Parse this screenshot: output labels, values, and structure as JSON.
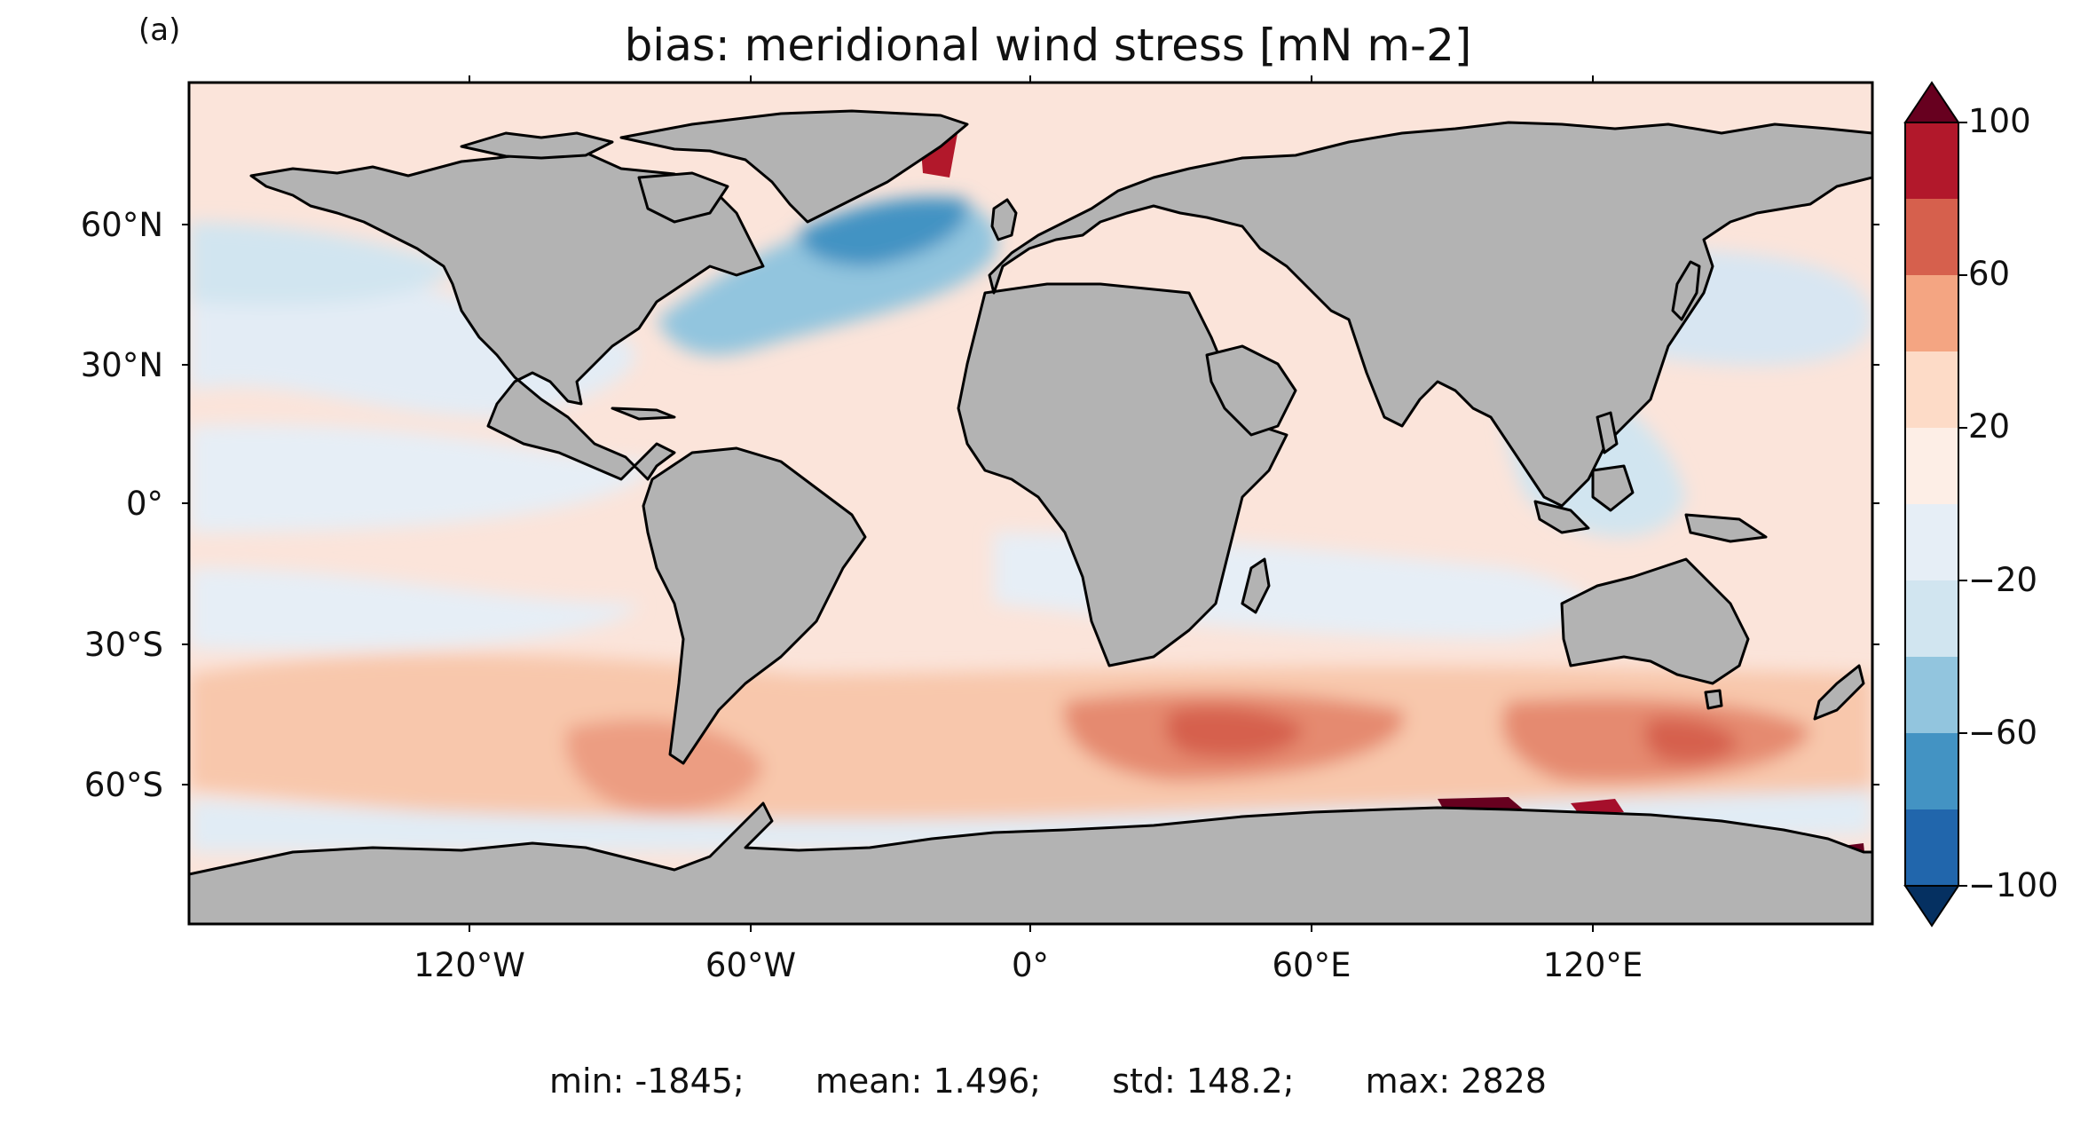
{
  "panel_label": "(a)",
  "title": "bias: meridional wind stress [mN m-2]",
  "lat_labels": [
    "60°N",
    "30°N",
    "0°",
    "30°S",
    "60°S"
  ],
  "lon_labels": [
    "120°W",
    "60°W",
    "0°",
    "60°E",
    "120°E"
  ],
  "colorbar": {
    "tick_labels": [
      "100",
      "60",
      "20",
      "−20",
      "−60",
      "−100"
    ],
    "colors": [
      "#67001f",
      "#b2182b",
      "#d6604d",
      "#f4a582",
      "#fddbc7",
      "#fdeee6",
      "#e6eef6",
      "#d1e5f0",
      "#92c5de",
      "#4393c3",
      "#2166ac",
      "#053061"
    ],
    "extend": "both"
  },
  "stats": {
    "min": "min: -1845;",
    "mean": "mean: 1.496;",
    "std": "std: 148.2;",
    "max": "max: 2828"
  },
  "colors": {
    "land": "#b3b3b3",
    "coast": "#000000",
    "ocean_base": "#fbe4da"
  }
}
